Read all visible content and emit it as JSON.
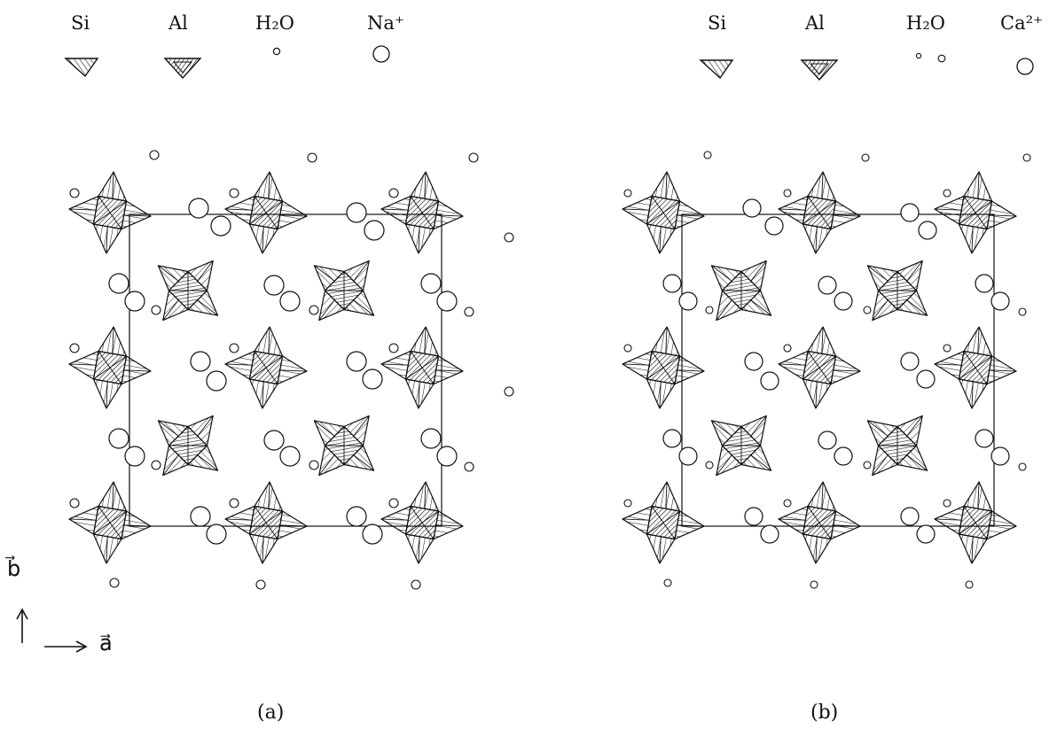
{
  "panels": [
    {
      "id": "a",
      "label": "(a)",
      "legend": [
        {
          "key": "si",
          "text": "Si",
          "marker": "si-tetrahedron-icon"
        },
        {
          "key": "al",
          "text": "Al",
          "marker": "al-tetrahedron-icon"
        },
        {
          "key": "h2o",
          "text": "H₂O",
          "marker": "water-molecule-icon"
        },
        {
          "key": "cation",
          "text": "Na⁺",
          "marker": "sodium-cation-icon"
        }
      ]
    },
    {
      "id": "b",
      "label": "(b)",
      "legend": [
        {
          "key": "si",
          "text": "Si",
          "marker": "si-tetrahedron-icon"
        },
        {
          "key": "al",
          "text": "Al",
          "marker": "al-tetrahedron-icon"
        },
        {
          "key": "h2o",
          "text": "H₂O",
          "marker": "water-molecule-icon"
        },
        {
          "key": "cation",
          "text": "Ca²⁺",
          "marker": "calcium-cation-icon"
        }
      ]
    }
  ],
  "axes": {
    "b": "b⃗",
    "a": "a⃗",
    "b_arrow": "↑",
    "a_arrow": "⟶"
  },
  "colors": {
    "line": "#111111",
    "background": "#ffffff"
  }
}
